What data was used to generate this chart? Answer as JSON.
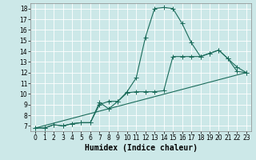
{
  "xlabel": "Humidex (Indice chaleur)",
  "bg_color": "#cce8e8",
  "grid_color": "#b8d8d8",
  "line_color": "#1a6b5a",
  "xlim": [
    -0.5,
    23.5
  ],
  "ylim": [
    6.5,
    18.5
  ],
  "xticks": [
    0,
    1,
    2,
    3,
    4,
    5,
    6,
    7,
    8,
    9,
    10,
    11,
    12,
    13,
    14,
    15,
    16,
    17,
    18,
    19,
    20,
    21,
    22,
    23
  ],
  "yticks": [
    7,
    8,
    9,
    10,
    11,
    12,
    13,
    14,
    15,
    16,
    17,
    18
  ],
  "series1_x": [
    0,
    1,
    2,
    3,
    4,
    5,
    6,
    7,
    8,
    9,
    10,
    11,
    12,
    13,
    14,
    15,
    16,
    17,
    18,
    19,
    20,
    21,
    22,
    23
  ],
  "series1_y": [
    6.8,
    6.8,
    7.1,
    7.0,
    7.2,
    7.3,
    7.3,
    9.2,
    8.6,
    9.3,
    10.2,
    11.5,
    15.3,
    18.0,
    18.1,
    18.0,
    16.6,
    14.8,
    13.5,
    13.8,
    14.1,
    13.3,
    12.1,
    12.0
  ],
  "series2_x": [
    0,
    1,
    2,
    3,
    4,
    5,
    6,
    7,
    8,
    9,
    10,
    11,
    12,
    13,
    14,
    15,
    16,
    17,
    18,
    19,
    20,
    21,
    22,
    23
  ],
  "series2_y": [
    6.8,
    6.8,
    7.1,
    7.0,
    7.2,
    7.3,
    7.3,
    9.0,
    9.3,
    9.3,
    10.1,
    10.2,
    10.2,
    10.2,
    10.3,
    13.5,
    13.5,
    13.5,
    13.5,
    13.8,
    14.1,
    13.3,
    12.5,
    12.0
  ],
  "series3_x": [
    0,
    23
  ],
  "series3_y": [
    6.8,
    12.0
  ],
  "tick_fontsize": 5.5,
  "label_fontsize": 7
}
